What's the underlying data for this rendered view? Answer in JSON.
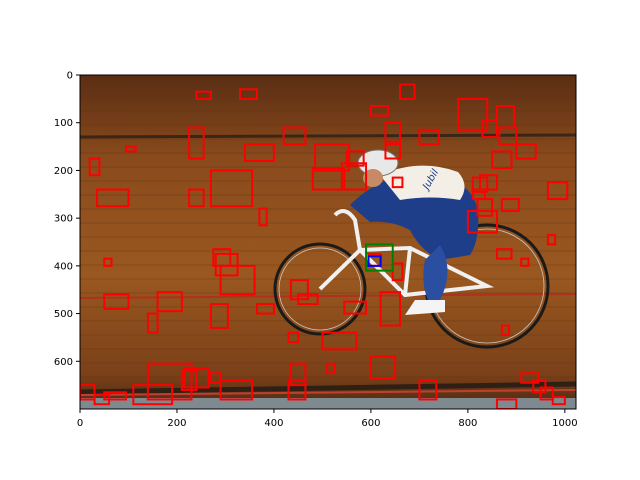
{
  "figure": {
    "title": "",
    "image_description_kind": "photo",
    "image_subject": "track cyclist on wooden velodrome",
    "jersey_text": "Jubil"
  },
  "chart_data": {
    "type": "scatter",
    "title": "",
    "xlabel": "",
    "ylabel": "",
    "xlim": [
      0,
      1023
    ],
    "ylim": [
      700,
      0
    ],
    "x_ticks": [
      0,
      200,
      400,
      600,
      800,
      1000
    ],
    "y_ticks": [
      0,
      100,
      200,
      300,
      400,
      500,
      600
    ],
    "grid": false,
    "legend": "none",
    "colors": {
      "boxes_red": "#ff0000",
      "box_green": "#008000",
      "box_blue": "#0000ff"
    },
    "red_boxes": [
      [
        240,
        35,
        270,
        50
      ],
      [
        330,
        30,
        365,
        50
      ],
      [
        660,
        20,
        690,
        50
      ],
      [
        600,
        65,
        635,
        85
      ],
      [
        225,
        110,
        255,
        175
      ],
      [
        420,
        110,
        465,
        145
      ],
      [
        630,
        100,
        660,
        140
      ],
      [
        700,
        115,
        740,
        145
      ],
      [
        780,
        50,
        840,
        115
      ],
      [
        830,
        95,
        860,
        130
      ],
      [
        860,
        65,
        895,
        110
      ],
      [
        865,
        110,
        900,
        145
      ],
      [
        900,
        145,
        940,
        175
      ],
      [
        850,
        160,
        890,
        195
      ],
      [
        340,
        145,
        400,
        180
      ],
      [
        485,
        145,
        555,
        200
      ],
      [
        550,
        160,
        585,
        190
      ],
      [
        630,
        145,
        660,
        175
      ],
      [
        95,
        150,
        115,
        160
      ],
      [
        20,
        175,
        40,
        210
      ],
      [
        35,
        240,
        100,
        275
      ],
      [
        225,
        240,
        255,
        275
      ],
      [
        270,
        200,
        355,
        275
      ],
      [
        370,
        280,
        385,
        315
      ],
      [
        480,
        195,
        545,
        240
      ],
      [
        540,
        185,
        590,
        240
      ],
      [
        645,
        215,
        665,
        235
      ],
      [
        810,
        215,
        840,
        245
      ],
      [
        825,
        210,
        860,
        240
      ],
      [
        810,
        240,
        835,
        260
      ],
      [
        820,
        260,
        850,
        295
      ],
      [
        870,
        260,
        905,
        285
      ],
      [
        965,
        225,
        1005,
        260
      ],
      [
        800,
        285,
        860,
        330
      ],
      [
        965,
        335,
        980,
        355
      ],
      [
        860,
        365,
        890,
        385
      ],
      [
        910,
        385,
        925,
        400
      ],
      [
        870,
        525,
        885,
        545
      ],
      [
        50,
        385,
        65,
        400
      ],
      [
        275,
        365,
        310,
        400
      ],
      [
        280,
        375,
        325,
        420
      ],
      [
        290,
        400,
        360,
        460
      ],
      [
        435,
        430,
        470,
        470
      ],
      [
        450,
        460,
        490,
        480
      ],
      [
        545,
        475,
        590,
        500
      ],
      [
        620,
        455,
        660,
        525
      ],
      [
        645,
        395,
        665,
        430
      ],
      [
        595,
        375,
        620,
        400
      ],
      [
        50,
        460,
        100,
        490
      ],
      [
        140,
        500,
        160,
        540
      ],
      [
        160,
        455,
        210,
        495
      ],
      [
        270,
        480,
        305,
        530
      ],
      [
        365,
        480,
        400,
        500
      ],
      [
        430,
        540,
        450,
        560
      ],
      [
        500,
        540,
        570,
        575
      ],
      [
        510,
        605,
        525,
        625
      ],
      [
        600,
        590,
        650,
        635
      ],
      [
        140,
        605,
        230,
        680
      ],
      [
        210,
        620,
        240,
        660
      ],
      [
        215,
        615,
        265,
        655
      ],
      [
        270,
        625,
        290,
        645
      ],
      [
        290,
        640,
        355,
        680
      ],
      [
        435,
        605,
        465,
        650
      ],
      [
        430,
        640,
        465,
        680
      ],
      [
        700,
        640,
        735,
        680
      ],
      [
        0,
        650,
        30,
        680
      ],
      [
        30,
        670,
        60,
        690
      ],
      [
        50,
        665,
        95,
        680
      ],
      [
        110,
        650,
        190,
        690
      ],
      [
        860,
        680,
        900,
        700
      ],
      [
        910,
        625,
        945,
        645
      ],
      [
        935,
        640,
        960,
        665
      ],
      [
        950,
        655,
        975,
        680
      ],
      [
        975,
        675,
        1000,
        690
      ]
    ],
    "green_boxes": [
      [
        590,
        355,
        645,
        410
      ]
    ],
    "blue_boxes": [
      [
        595,
        380,
        620,
        400
      ]
    ]
  }
}
